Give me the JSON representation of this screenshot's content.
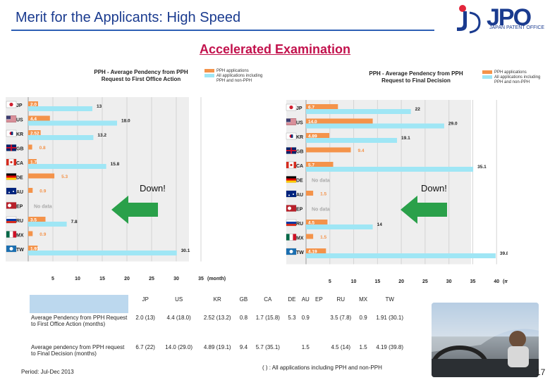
{
  "page": {
    "title": "Merit for the Applicants: High Speed",
    "subtitle": "Accelerated Examination",
    "logo": {
      "text": "JPO",
      "subtitle": "JAPAN PATENT OFFICE"
    },
    "down_label": "Down!",
    "period": "Period:  Jul-Dec 2013",
    "footnote": "( ) : All applications including PPH and non-PPH",
    "page_number": "17",
    "colors": {
      "pph": "#f4934a",
      "all": "#9fe6f5",
      "title": "#1a3b8f",
      "subtitle": "#c2114c",
      "arrow": "#2aa04a"
    }
  },
  "chart_data": [
    {
      "type": "bar",
      "orientation": "horizontal",
      "title_line1": "PPH - Average Pendency from PPH",
      "title_line2": "Request to First Office Action",
      "legend": {
        "pph": "PPH applications",
        "all_line1": "All applications including",
        "all_line2": "PPH and non-PPH"
      },
      "categories": [
        "JP",
        "US",
        "KR",
        "GB",
        "CA",
        "DE",
        "AU",
        "EP",
        "RU",
        "MX",
        "TW"
      ],
      "series": [
        {
          "name": "PPH applications",
          "values": [
            2.0,
            4.4,
            2.52,
            0.8,
            1.7,
            5.3,
            0.9,
            null,
            3.5,
            0.9,
            1.91
          ],
          "labels": [
            "2.0",
            "4.4",
            "2.52",
            "0.8",
            "1.7",
            "5.3",
            "0.9",
            "",
            "3.5",
            "0.9",
            "1.91"
          ]
        },
        {
          "name": "All applications including PPH and non-PPH",
          "values": [
            13,
            18.0,
            13.2,
            null,
            15.8,
            null,
            null,
            null,
            7.8,
            null,
            30.1
          ],
          "labels": [
            "13",
            "18.0",
            "13.2",
            "",
            "15.8",
            "",
            "",
            "",
            "7.8",
            "",
            "30.1"
          ]
        }
      ],
      "no_data_label": "No data",
      "no_data": [
        "EP"
      ],
      "xticks": [
        "5",
        "10",
        "15",
        "20",
        "25",
        "30",
        "35"
      ],
      "xunit": "(month)",
      "xlim": [
        0,
        36
      ]
    },
    {
      "type": "bar",
      "orientation": "horizontal",
      "title_line1": "PPH - Average Pendency from PPH",
      "title_line2": "Request to Final Decision",
      "legend": {
        "pph": "PPH applications",
        "all_line1": "All applications including",
        "all_line2": "PPH and non-PPH"
      },
      "categories": [
        "JP",
        "US",
        "KR",
        "GB",
        "CA",
        "DE",
        "AU",
        "EP",
        "RU",
        "MX",
        "TW"
      ],
      "series": [
        {
          "name": "PPH applications",
          "values": [
            6.7,
            14.0,
            4.89,
            9.4,
            5.7,
            null,
            1.5,
            null,
            4.5,
            1.5,
            4.19
          ],
          "labels": [
            "6.7",
            "14.0",
            "4.89",
            "9.4",
            "5.7",
            "",
            "1.5",
            "",
            "4.5",
            "1.5",
            "4.19"
          ]
        },
        {
          "name": "All applications including PPH and non-PPH",
          "values": [
            22,
            29.0,
            19.1,
            null,
            35.1,
            null,
            null,
            null,
            14,
            null,
            39.8
          ],
          "labels": [
            "22",
            "29.0",
            "19.1",
            "",
            "35.1",
            "",
            "",
            "",
            "14",
            "",
            "39.8"
          ]
        }
      ],
      "no_data_label": "No data",
      "no_data": [
        "DE",
        "EP"
      ],
      "xticks": [
        "5",
        "10",
        "15",
        "20",
        "25",
        "30",
        "35",
        "40"
      ],
      "xunit": "(month)",
      "xlim": [
        0,
        41
      ]
    }
  ],
  "table": {
    "headers": [
      "JP",
      "US",
      "KR",
      "GB",
      "CA",
      "DE",
      "AU",
      "EP",
      "RU",
      "MX",
      "TW"
    ],
    "rows": [
      {
        "label": "Average Pendency from PPH Request to First Office Action (months)",
        "cells": [
          "2.0 (13)",
          "4.4 (18.0)",
          "2.52 (13.2)",
          "0.8",
          "1.7 (15.8)",
          "5.3",
          "0.9",
          "",
          "3.5 (7.8)",
          "0.9",
          "1.91 (30.1)"
        ]
      },
      {
        "label": "Average pendency from PPH request to Final Decision (months)",
        "cells": [
          "6.7 (22)",
          "14.0 (29.0)",
          "4.89 (19.1)",
          "9.4",
          "5.7 (35.1)",
          "",
          "1.5",
          "",
          "4.5 (14)",
          "1.5",
          "4.19 (39.8)"
        ]
      }
    ]
  }
}
